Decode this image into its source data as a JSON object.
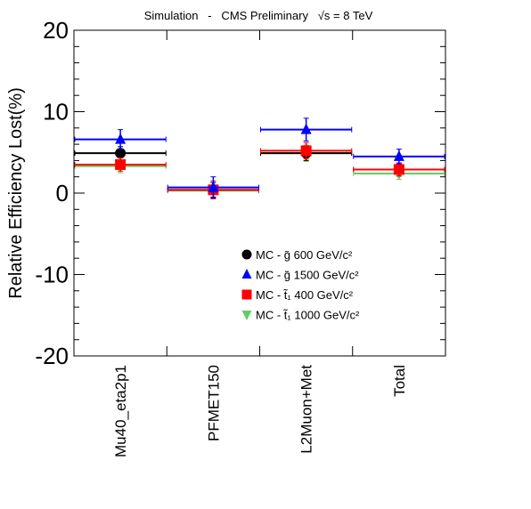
{
  "chart_data": {
    "type": "scatter",
    "title": "Simulation   -   CMS Preliminary   √s = 8 TeV",
    "ylabel": "Relative Efficiency Lost(%)",
    "xlabel": "",
    "ylim": [
      -20,
      20
    ],
    "yticks": [
      "20",
      "10",
      "0",
      "-10",
      "-20"
    ],
    "categories": [
      "Mu40_eta2p1",
      "PFMET150",
      "L2Muon+Met",
      "Total"
    ],
    "grid": false,
    "legend_position": "center-right",
    "series": [
      {
        "name": "MC - g̃ 600 GeV/c²",
        "marker": "circle",
        "color": "#000000",
        "values": [
          4.9,
          0.4,
          4.9,
          2.9
        ],
        "errors": [
          0.8,
          0.9,
          0.9,
          0.8
        ]
      },
      {
        "name": "MC - g̃ 1500 GeV/c²",
        "marker": "triangle-up",
        "color": "#0000ff",
        "values": [
          6.6,
          0.7,
          7.8,
          4.5
        ],
        "errors": [
          1.2,
          1.3,
          1.4,
          0.9
        ]
      },
      {
        "name": "MC - t̃₁ 400 GeV/c²",
        "marker": "square",
        "color": "#ff0000",
        "values": [
          3.5,
          0.4,
          5.2,
          2.9
        ],
        "errors": [
          0.8,
          1.1,
          1.0,
          0.8
        ]
      },
      {
        "name": "MC - t̃₁ 1000 GeV/c²",
        "marker": "triangle-down",
        "color": "#66cc66",
        "values": [
          3.3,
          0.3,
          4.9,
          2.4
        ],
        "errors": [
          0.8,
          1.0,
          1.0,
          0.7
        ]
      }
    ]
  }
}
